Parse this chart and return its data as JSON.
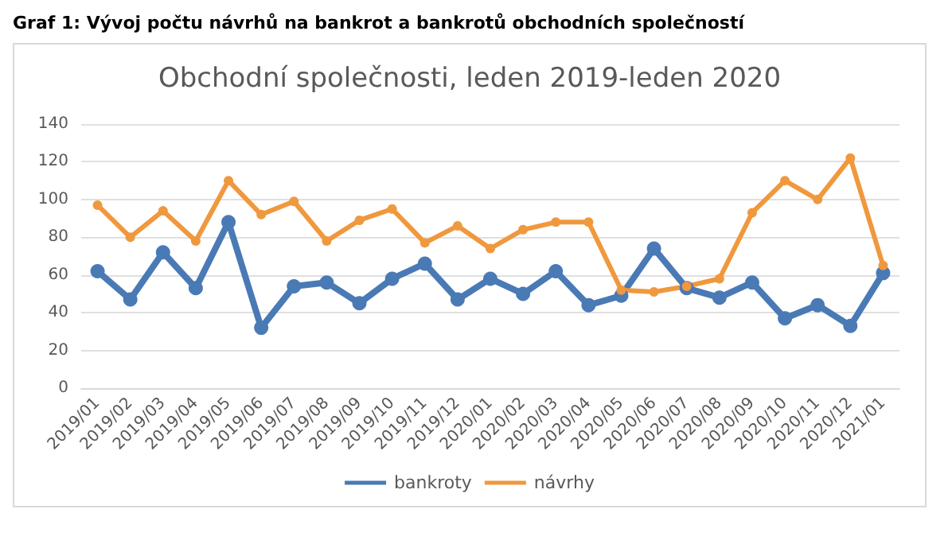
{
  "chart_data": {
    "type": "line",
    "title": "Graf 1: Vývoj počtu návrhů na bankrot a bankrotů obchodních společností",
    "subtitle": "Obchodní společnosti, leden 2019-leden 2020",
    "categories": [
      "2019/01",
      "2019/02",
      "2019/03",
      "2019/04",
      "2019/05",
      "2019/06",
      "2019/07",
      "2019/08",
      "2019/09",
      "2019/10",
      "2019/11",
      "2019/12",
      "2020/01",
      "2020/02",
      "2020/03",
      "2020/04",
      "2020/05",
      "2020/06",
      "2020/07",
      "2020/08",
      "2020/09",
      "2020/10",
      "2020/11",
      "2020/12",
      "2021/01"
    ],
    "series": [
      {
        "name": "bankroty",
        "color": "#4a7ab5",
        "values": [
          62,
          47,
          72,
          53,
          88,
          32,
          54,
          56,
          45,
          58,
          66,
          47,
          58,
          50,
          62,
          44,
          49,
          74,
          53,
          48,
          56,
          37,
          44,
          33,
          61
        ]
      },
      {
        "name": "návrhy",
        "color": "#f0983e",
        "values": [
          97,
          80,
          94,
          78,
          110,
          92,
          99,
          78,
          89,
          95,
          77,
          86,
          74,
          84,
          88,
          88,
          52,
          51,
          54,
          58,
          93,
          110,
          100,
          122,
          65
        ]
      }
    ],
    "ylim": [
      0,
      140
    ],
    "yticks": [
      0,
      20,
      40,
      60,
      80,
      100,
      120,
      140
    ],
    "grid": "y",
    "legend": "bottom",
    "marker": "circle",
    "line_style": "solid"
  }
}
